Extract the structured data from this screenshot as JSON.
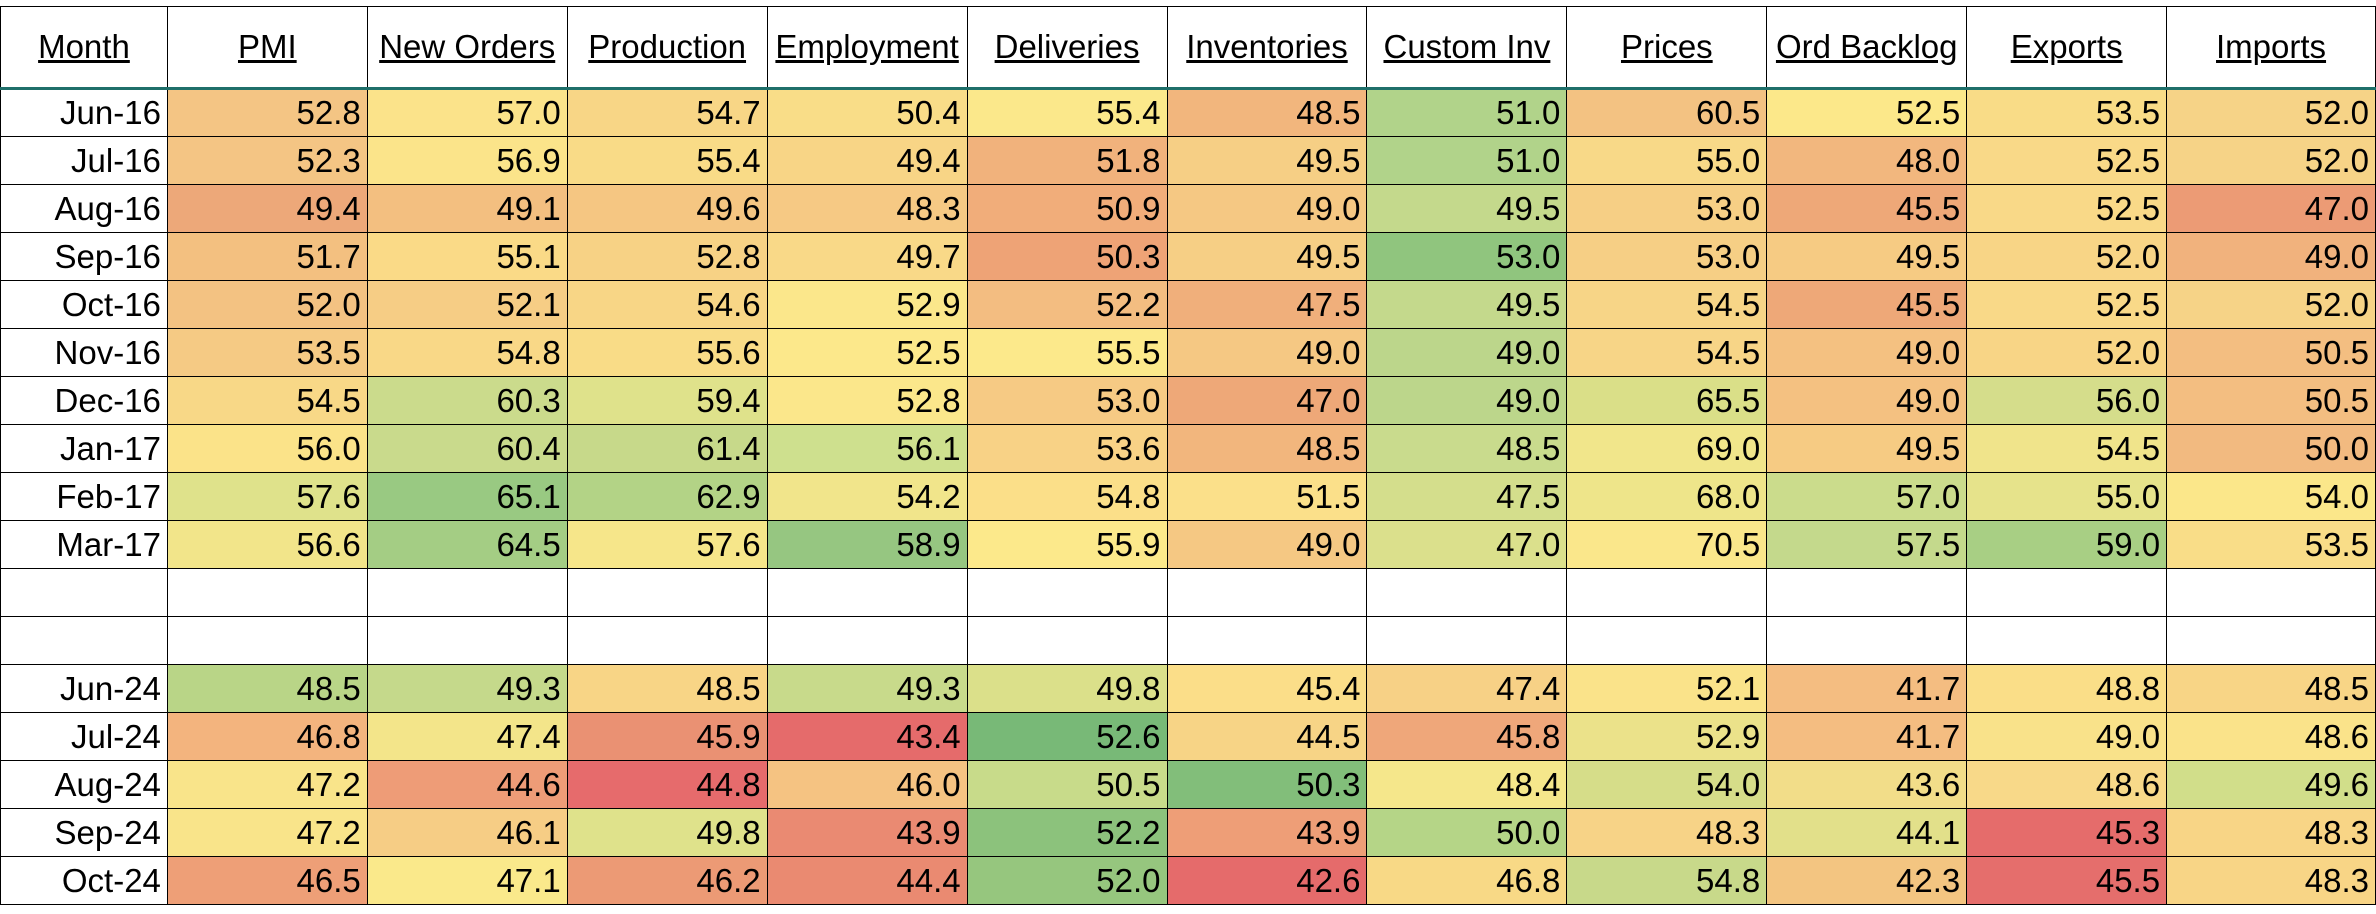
{
  "table": {
    "headers": [
      "Month",
      "PMI",
      "New Orders",
      "Production",
      "Employment",
      "Deliveries",
      "Inventories",
      "Custom Inv",
      "Prices",
      "Ord Backlog",
      "Exports",
      "Imports"
    ],
    "rows": [
      {
        "month": "Jun-16",
        "values": [
          "52.8",
          "57.0",
          "54.7",
          "50.4",
          "55.4",
          "48.5",
          "51.0",
          "60.5",
          "52.5",
          "53.5",
          "52.0"
        ],
        "colors": [
          "#f4c584",
          "#fbe38a",
          "#f8d686",
          "#f9dd88",
          "#fbe88b",
          "#f2b67d",
          "#b1d38a",
          "#f3c282",
          "#fce88a",
          "#f9dc87",
          "#f6d387"
        ]
      },
      {
        "month": "Jul-16",
        "values": [
          "52.3",
          "56.9",
          "55.4",
          "49.4",
          "51.8",
          "49.5",
          "51.0",
          "55.0",
          "48.0",
          "52.5",
          "52.0"
        ],
        "colors": [
          "#f4c584",
          "#fbe48a",
          "#f9db87",
          "#f8d586",
          "#f1b27c",
          "#f6cf85",
          "#b1d38a",
          "#f8d988",
          "#f2b77e",
          "#f9d988",
          "#f6d387"
        ]
      },
      {
        "month": "Aug-16",
        "values": [
          "49.4",
          "49.1",
          "49.6",
          "48.3",
          "50.9",
          "49.0",
          "49.5",
          "53.0",
          "45.5",
          "52.5",
          "47.0"
        ],
        "colors": [
          "#eda879",
          "#f3bf80",
          "#f5c682",
          "#f6c984",
          "#f1ad7a",
          "#f5c883",
          "#c4d98c",
          "#f6cf85",
          "#eea878",
          "#f9d988",
          "#ec9b75"
        ]
      },
      {
        "month": "Sep-16",
        "values": [
          "51.7",
          "55.1",
          "52.8",
          "49.7",
          "50.3",
          "49.5",
          "53.0",
          "53.0",
          "49.5",
          "52.0",
          "49.0"
        ],
        "colors": [
          "#f3c080",
          "#fada87",
          "#f7d285",
          "#f9d988",
          "#eea376",
          "#f6cf85",
          "#90c57e",
          "#f6cf85",
          "#f6cb83",
          "#f8d586",
          "#f1b27d"
        ]
      },
      {
        "month": "Oct-16",
        "values": [
          "52.0",
          "52.1",
          "54.6",
          "52.9",
          "52.2",
          "47.5",
          "49.5",
          "54.5",
          "45.5",
          "52.5",
          "52.0"
        ],
        "colors": [
          "#f3c282",
          "#f6cd85",
          "#f8d686",
          "#fbe78b",
          "#f3bd81",
          "#f0af7b",
          "#c4d98c",
          "#f7d587",
          "#eea878",
          "#f9d988",
          "#f6d387"
        ]
      },
      {
        "month": "Nov-16",
        "values": [
          "53.5",
          "54.8",
          "55.6",
          "52.5",
          "55.5",
          "49.0",
          "49.0",
          "54.5",
          "49.0",
          "52.0",
          "50.5"
        ],
        "colors": [
          "#f5ca84",
          "#f9d887",
          "#f9dc87",
          "#fce88b",
          "#fce98b",
          "#f5c883",
          "#bcd68b",
          "#f7d587",
          "#f4c181",
          "#f8d586",
          "#f3be81"
        ]
      },
      {
        "month": "Dec-16",
        "values": [
          "54.5",
          "60.3",
          "59.4",
          "52.8",
          "53.0",
          "47.0",
          "49.0",
          "65.5",
          "49.0",
          "56.0",
          "50.5"
        ],
        "colors": [
          "#f8d887",
          "#cbdb8c",
          "#dfe28b",
          "#fbe78b",
          "#f6ca84",
          "#eea878",
          "#bcd68b",
          "#dadf88",
          "#f4c181",
          "#d5dd8b",
          "#f3be81"
        ]
      },
      {
        "month": "Jan-17",
        "values": [
          "56.0",
          "60.4",
          "61.4",
          "56.1",
          "53.6",
          "48.5",
          "48.5",
          "69.0",
          "49.5",
          "54.5",
          "50.0"
        ],
        "colors": [
          "#fbe389",
          "#c9da8c",
          "#c7d98a",
          "#cee08e",
          "#f8d286",
          "#f2b67d",
          "#c9db8d",
          "#f1e68b",
          "#f6cb83",
          "#f0e48b",
          "#f2ba80"
        ]
      },
      {
        "month": "Feb-17",
        "values": [
          "57.6",
          "65.1",
          "62.9",
          "54.2",
          "54.8",
          "51.5",
          "47.5",
          "68.0",
          "57.0",
          "55.0",
          "54.0"
        ],
        "colors": [
          "#dfe28b",
          "#99c982",
          "#b3d386",
          "#f1e58b",
          "#fbdf89",
          "#fbe08a",
          "#d4de8c",
          "#eee58a",
          "#cbdc8c",
          "#e6e38b",
          "#fbe78a"
        ]
      },
      {
        "month": "Mar-17",
        "values": [
          "56.6",
          "64.5",
          "57.6",
          "58.9",
          "55.9",
          "49.0",
          "47.0",
          "70.5",
          "57.5",
          "59.0",
          "53.5"
        ],
        "colors": [
          "#f2e58a",
          "#a4cd84",
          "#f6e68a",
          "#96c681",
          "#fce98b",
          "#f5c883",
          "#dbe08c",
          "#fae78b",
          "#c4d98c",
          "#a8cf84",
          "#f9dd88"
        ]
      },
      {
        "month": "",
        "values": [
          "",
          "",
          "",
          "",
          "",
          "",
          "",
          "",
          "",
          "",
          ""
        ],
        "colors": [
          "#ffffff",
          "#ffffff",
          "#ffffff",
          "#ffffff",
          "#ffffff",
          "#ffffff",
          "#ffffff",
          "#ffffff",
          "#ffffff",
          "#ffffff",
          "#ffffff"
        ]
      },
      {
        "month": "",
        "values": [
          "",
          "",
          "",
          "",
          "",
          "",
          "",
          "",
          "",
          "",
          ""
        ],
        "colors": [
          "#ffffff",
          "#ffffff",
          "#ffffff",
          "#ffffff",
          "#ffffff",
          "#ffffff",
          "#ffffff",
          "#ffffff",
          "#ffffff",
          "#ffffff",
          "#ffffff"
        ]
      },
      {
        "month": "Jun-24",
        "values": [
          "48.5",
          "49.3",
          "48.5",
          "49.3",
          "49.8",
          "45.4",
          "47.4",
          "52.1",
          "41.7",
          "48.8",
          "48.5"
        ],
        "colors": [
          "#b9d587",
          "#c5d98b",
          "#f8d586",
          "#c8da8b",
          "#dbe08a",
          "#fbde89",
          "#f7d186",
          "#fae38a",
          "#f4bd81",
          "#fade88",
          "#f8d586"
        ]
      },
      {
        "month": "Jul-24",
        "values": [
          "46.8",
          "47.4",
          "45.9",
          "43.4",
          "52.6",
          "44.5",
          "45.8",
          "52.9",
          "41.7",
          "49.0",
          "48.6"
        ],
        "colors": [
          "#f3b47e",
          "#f3e58a",
          "#ea9173",
          "#e56b6b",
          "#78b977",
          "#f7d486",
          "#efa77a",
          "#ebe28a",
          "#f4bd81",
          "#f9e28a",
          "#fae38a"
        ]
      },
      {
        "month": "Aug-24",
        "values": [
          "47.2",
          "44.6",
          "44.8",
          "46.0",
          "50.5",
          "50.3",
          "48.4",
          "54.0",
          "43.6",
          "48.6",
          "49.6"
        ],
        "colors": [
          "#f9e48a",
          "#ee9c77",
          "#e66b6c",
          "#f5c382",
          "#c8db8a",
          "#82be7a",
          "#f5e78b",
          "#d6dd89",
          "#f2dd89",
          "#f8d989",
          "#d1de8a"
        ]
      },
      {
        "month": "Sep-24",
        "values": [
          "47.2",
          "46.1",
          "49.8",
          "43.9",
          "52.2",
          "43.9",
          "50.0",
          "48.3",
          "44.1",
          "45.3",
          "48.3"
        ],
        "colors": [
          "#f9e48a",
          "#f6cd85",
          "#dfe28b",
          "#ea8a72",
          "#8cc27c",
          "#ee9e77",
          "#b5d587",
          "#f7d387",
          "#e2e08a",
          "#e56c6b",
          "#f8d586"
        ]
      },
      {
        "month": "Oct-24",
        "values": [
          "46.5",
          "47.1",
          "46.2",
          "44.4",
          "52.0",
          "42.6",
          "46.8",
          "54.8",
          "42.3",
          "45.5",
          "48.3"
        ],
        "colors": [
          "#ee9f77",
          "#fae98b",
          "#ec9a75",
          "#ea8a71",
          "#96c67e",
          "#e56b6b",
          "#f8d986",
          "#c8d98a",
          "#f3c581",
          "#e56e6c",
          "#f8d586"
        ]
      }
    ]
  }
}
